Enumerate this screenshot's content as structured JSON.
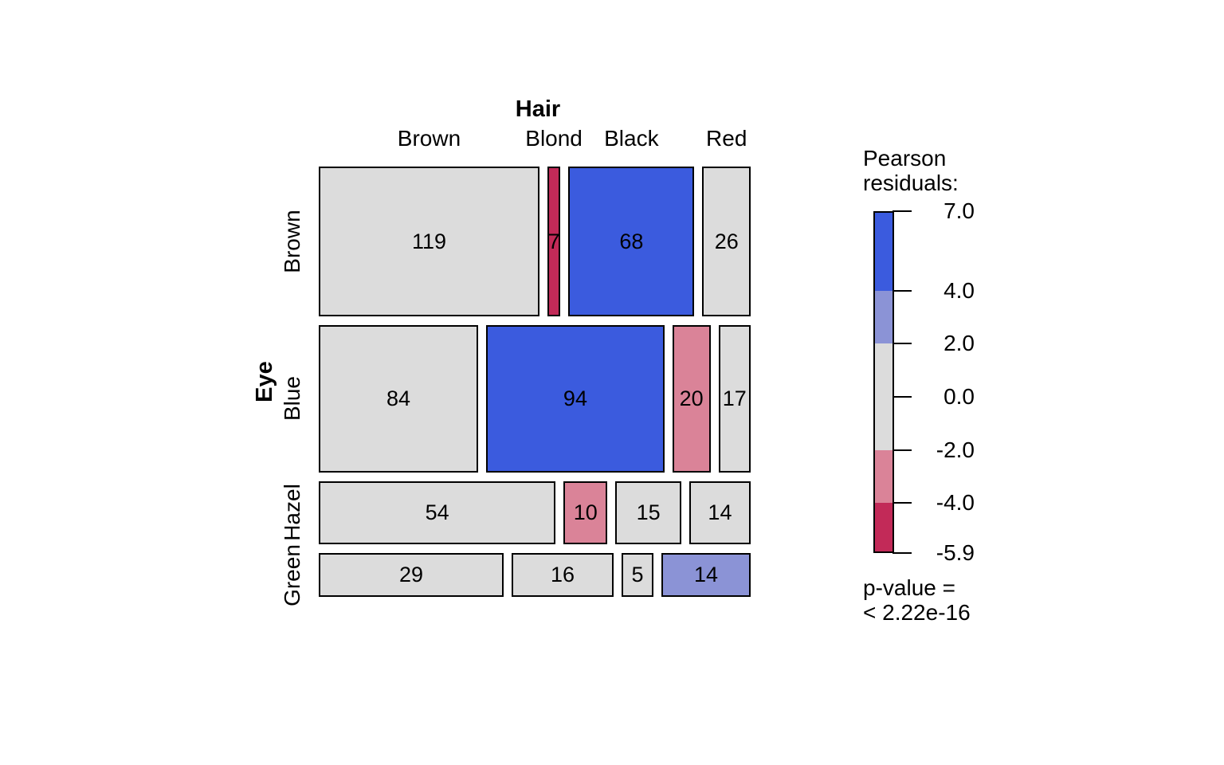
{
  "chart_data": {
    "type": "mosaic",
    "x_variable": "Hair",
    "y_variable": "Eye",
    "x_categories": [
      "Brown",
      "Blond",
      "Black",
      "Red"
    ],
    "y_categories": [
      "Brown",
      "Blue",
      "Hazel",
      "Green"
    ],
    "counts": [
      [
        119,
        7,
        68,
        26
      ],
      [
        84,
        94,
        20,
        17
      ],
      [
        54,
        10,
        15,
        14
      ],
      [
        29,
        16,
        5,
        14
      ]
    ],
    "shading": [
      [
        "neutral",
        "neg-high",
        "pos-high",
        "neutral"
      ],
      [
        "neutral",
        "pos-high",
        "neg-mid",
        "neutral"
      ],
      [
        "neutral",
        "neg-mid",
        "neutral",
        "neutral"
      ],
      [
        "neutral",
        "neutral",
        "neutral",
        "pos-mid"
      ]
    ],
    "legend": {
      "title_lines": [
        "Pearson",
        "residuals:"
      ],
      "tick_labels": [
        "7.0",
        "4.0",
        "2.0",
        "0.0",
        "-2.0",
        "-4.0",
        "-5.9"
      ],
      "tick_values": [
        7.0,
        4.0,
        2.0,
        0.0,
        -2.0,
        -4.0,
        -5.9
      ],
      "scale_max": 7.0,
      "scale_min": -5.9,
      "segments": [
        {
          "from": 7.0,
          "to": 4.0,
          "level": "pos-high"
        },
        {
          "from": 4.0,
          "to": 2.0,
          "level": "pos-mid"
        },
        {
          "from": 2.0,
          "to": -2.0,
          "level": "neutral"
        },
        {
          "from": -2.0,
          "to": -4.0,
          "level": "neg-mid"
        },
        {
          "from": -4.0,
          "to": -5.9,
          "level": "neg-high"
        }
      ],
      "p_value_lines": [
        "p-value =",
        "< 2.22e-16"
      ]
    },
    "colors": {
      "pos-high": "#3B5BDE",
      "pos-mid": "#8B93D6",
      "neutral": "#DCDCDC",
      "neg-mid": "#DA8398",
      "neg-high": "#C22A58",
      "cell_border": "#000000",
      "text": "#000000",
      "background": "#FFFFFF"
    }
  }
}
